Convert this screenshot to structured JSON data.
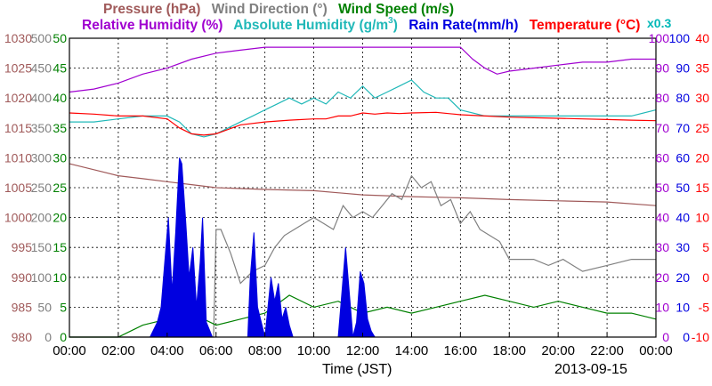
{
  "legend": {
    "pressure": "Pressure (hPa)",
    "wind_direction": "Wind Direction (°)",
    "wind_speed": "Wind Speed (m/s)",
    "relative_humidity": "Relative Humidity (%)",
    "absolute_humidity_main": "Absolute Humidity (g/m",
    "absolute_humidity_sup": "3",
    "absolute_humidity_tail": ")",
    "rain_rate": "Rain Rate(mm/h)",
    "temperature": "Temperature (°C)",
    "scale_note": "x0.3"
  },
  "colors": {
    "pressure": "#a05a5a",
    "wind_direction": "#808080",
    "wind_speed": "#008000",
    "relative_humidity": "#a000d0",
    "absolute_humidity": "#20b8b8",
    "rain_rate": "#0000e0",
    "temperature": "#ff0000"
  },
  "footer": {
    "x_title": "Time (JST)",
    "date": "2013-09-15"
  },
  "chart_data": {
    "type": "line",
    "x_unit": "hours (JST)",
    "x_range": [
      0,
      24
    ],
    "x_ticks": [
      "00:00",
      "02:00",
      "04:00",
      "06:00",
      "08:00",
      "10:00",
      "12:00",
      "14:00",
      "16:00",
      "18:00",
      "20:00",
      "22:00",
      "00:00"
    ],
    "grid": true,
    "axes": {
      "pressure": {
        "range": [
          980,
          1030
        ],
        "ticks": [
          "1030",
          "1025",
          "1020",
          "1015",
          "1010",
          "1005",
          "1000",
          "995",
          "990",
          "985",
          "980"
        ]
      },
      "wind_direction": {
        "range": [
          0,
          500
        ],
        "ticks": [
          "500",
          "450",
          "400",
          "350",
          "300",
          "250",
          "200",
          "150",
          "100",
          "50",
          "0"
        ]
      },
      "wind_speed": {
        "range": [
          0,
          50
        ],
        "ticks": [
          "50",
          "45",
          "40",
          "35",
          "30",
          "25",
          "20",
          "15",
          "10",
          "5",
          "0"
        ]
      },
      "relative_humidity": {
        "range": [
          0,
          100
        ],
        "ticks": [
          "100",
          "90",
          "80",
          "70",
          "60",
          "50",
          "40",
          "30",
          "20",
          "10",
          "0"
        ]
      },
      "rain_rate": {
        "range": [
          0,
          100
        ],
        "ticks": [
          "100",
          "90",
          "80",
          "70",
          "60",
          "50",
          "40",
          "30",
          "20",
          "10",
          "0"
        ]
      },
      "temperature": {
        "range": [
          -10,
          40
        ],
        "ticks": [
          "40",
          "35",
          "30",
          "25",
          "20",
          "15",
          "10",
          "5",
          "0",
          "-5",
          "-10"
        ]
      }
    },
    "series": [
      {
        "name": "Pressure (hPa)",
        "axis": "pressure",
        "color": "#a05a5a",
        "x": [
          0,
          1,
          2,
          3,
          4,
          5,
          6,
          8,
          10,
          12,
          14,
          16,
          18,
          20,
          22,
          24
        ],
        "y": [
          1009,
          1008,
          1007,
          1006.5,
          1006,
          1005.5,
          1005,
          1004.7,
          1004.5,
          1003.8,
          1003.5,
          1003.3,
          1003,
          1002.8,
          1002.6,
          1002
        ]
      },
      {
        "name": "Wind Direction (°)",
        "axis": "wind_direction",
        "color": "#808080",
        "x": [
          0,
          5.9,
          6.0,
          6.2,
          6.6,
          7.0,
          7.5,
          8.0,
          8.4,
          8.8,
          9.2,
          9.6,
          10.0,
          10.4,
          10.8,
          11.2,
          11.6,
          12.0,
          12.4,
          12.8,
          13.2,
          13.6,
          14.0,
          14.4,
          14.8,
          15.2,
          15.6,
          16.0,
          16.4,
          16.8,
          17.2,
          17.6,
          18.0,
          19.0,
          19.6,
          20.2,
          21.0,
          22.0,
          23.0,
          24.0
        ],
        "y": [
          0,
          0,
          180,
          180,
          140,
          90,
          110,
          120,
          150,
          170,
          180,
          190,
          200,
          190,
          180,
          220,
          200,
          210,
          200,
          220,
          240,
          230,
          270,
          250,
          260,
          220,
          230,
          190,
          210,
          180,
          170,
          160,
          130,
          130,
          120,
          130,
          110,
          120,
          130,
          130
        ]
      },
      {
        "name": "Wind Speed (m/s)",
        "axis": "wind_speed",
        "color": "#008000",
        "x": [
          0,
          2.0,
          2.5,
          3.0,
          4.0,
          5.0,
          6.0,
          7.0,
          8.0,
          9.0,
          10.0,
          11.0,
          12.0,
          13.0,
          14.0,
          15.0,
          16.0,
          17.0,
          18.0,
          19.0,
          20.0,
          21.0,
          22.0,
          23.0,
          24.0
        ],
        "y": [
          0,
          0,
          1,
          2,
          3,
          4,
          2,
          3,
          4,
          7,
          5,
          6,
          4,
          5,
          4,
          5,
          6,
          7,
          6,
          5,
          6,
          5,
          4,
          4,
          3
        ]
      },
      {
        "name": "Relative Humidity (%)",
        "axis": "relative_humidity",
        "color": "#a000d0",
        "x": [
          0,
          1,
          2,
          3,
          4,
          5,
          6,
          7,
          8,
          9,
          10,
          11,
          12,
          13,
          14,
          15,
          16,
          16.5,
          17,
          17.5,
          18,
          19,
          20,
          21,
          22,
          23,
          24
        ],
        "y": [
          82,
          83,
          85,
          88,
          90,
          93,
          95,
          96,
          97,
          97,
          97,
          97,
          97,
          97,
          97,
          97,
          97,
          93,
          90,
          88,
          89,
          90,
          91,
          92,
          92,
          93,
          93
        ]
      },
      {
        "name": "Absolute Humidity (g/m3)",
        "axis": "wind_speed",
        "color": "#20b8b8",
        "x": [
          0,
          1,
          2,
          3,
          4,
          4.5,
          5,
          5.5,
          6,
          6.5,
          7,
          7.5,
          8,
          8.5,
          9,
          9.5,
          10,
          10.5,
          11,
          11.5,
          12,
          12.5,
          13,
          13.5,
          14,
          14.5,
          15,
          15.5,
          16,
          17,
          18,
          19,
          20,
          21,
          22,
          23,
          24
        ],
        "y": [
          36,
          36,
          36.5,
          37,
          37,
          36,
          34,
          33.5,
          34,
          35,
          36,
          37,
          38,
          39,
          40,
          39,
          40,
          39,
          41,
          40,
          42,
          40,
          41,
          42,
          43,
          41,
          40,
          40,
          38,
          37,
          37,
          37,
          37,
          37,
          37,
          37,
          38
        ]
      },
      {
        "name": "Rain Rate(mm/h)",
        "axis": "rain_rate",
        "type": "area",
        "color": "#0000e0",
        "x": [
          0,
          3.3,
          3.6,
          3.75,
          3.9,
          4.05,
          4.2,
          4.35,
          4.5,
          4.6,
          4.75,
          4.9,
          5.05,
          5.2,
          5.35,
          5.45,
          5.6,
          5.75,
          5.85,
          6.0,
          6.5,
          7.0,
          7.3,
          7.4,
          7.55,
          7.7,
          8.0,
          8.1,
          8.25,
          8.4,
          8.55,
          8.7,
          8.85,
          9.0,
          9.15,
          9.3,
          9.5,
          10.0,
          11.0,
          11.15,
          11.3,
          11.5,
          11.6,
          11.75,
          11.9,
          12.05,
          12.2,
          12.35,
          12.5,
          12.65,
          12.8,
          13.0,
          13.3,
          13.5,
          13.7,
          13.85,
          14.0,
          24
        ],
        "y": [
          0,
          0,
          5,
          10,
          25,
          40,
          15,
          35,
          60,
          58,
          40,
          20,
          30,
          10,
          25,
          40,
          5,
          2,
          0,
          0,
          0,
          0,
          0,
          20,
          35,
          10,
          0,
          8,
          20,
          12,
          18,
          6,
          10,
          4,
          0,
          0,
          0,
          0,
          0,
          15,
          30,
          10,
          0,
          5,
          22,
          18,
          6,
          2,
          0,
          0,
          0,
          0,
          0,
          0,
          0,
          0,
          0,
          0
        ]
      },
      {
        "name": "Temperature (°C)",
        "axis": "temperature",
        "color": "#ff0000",
        "x": [
          0,
          1,
          2,
          3,
          4,
          4.5,
          5,
          5.5,
          6,
          7,
          8,
          9,
          10,
          10.5,
          11,
          11.5,
          12,
          12.5,
          13,
          13.5,
          14,
          15,
          16,
          17,
          18,
          19,
          20,
          21,
          22,
          23,
          24
        ],
        "y": [
          27.5,
          27.3,
          27,
          27,
          26.5,
          25,
          24,
          23.8,
          24,
          25.5,
          26,
          26.3,
          26.5,
          26.5,
          27,
          27,
          27.5,
          27.3,
          27.5,
          27.4,
          27.5,
          27.6,
          27.2,
          27,
          26.8,
          26.7,
          26.6,
          26.5,
          26.4,
          26.3,
          26.2
        ]
      }
    ]
  }
}
